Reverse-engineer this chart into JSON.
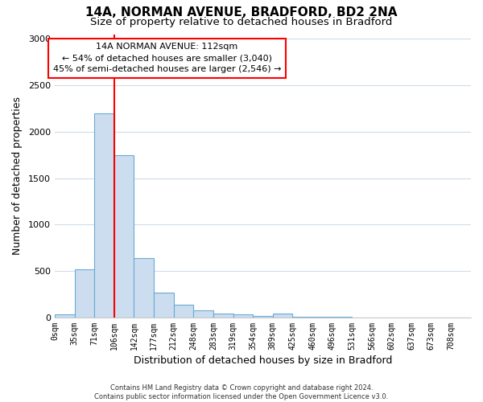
{
  "title1": "14A, NORMAN AVENUE, BRADFORD, BD2 2NA",
  "title2": "Size of property relative to detached houses in Bradford",
  "xlabel": "Distribution of detached houses by size in Bradford",
  "ylabel": "Number of detached properties",
  "bar_labels": [
    "0sqm",
    "35sqm",
    "71sqm",
    "106sqm",
    "142sqm",
    "177sqm",
    "212sqm",
    "248sqm",
    "283sqm",
    "319sqm",
    "354sqm",
    "389sqm",
    "425sqm",
    "460sqm",
    "496sqm",
    "531sqm",
    "566sqm",
    "602sqm",
    "637sqm",
    "673sqm",
    "708sqm"
  ],
  "bar_values": [
    30,
    520,
    2200,
    1750,
    640,
    265,
    140,
    80,
    45,
    35,
    20,
    40,
    10,
    5,
    5,
    0,
    0,
    0,
    0,
    0,
    0
  ],
  "bar_color": "#ccddef",
  "bar_edge_color": "#6aaad4",
  "vline_color": "red",
  "annotation_text": "14A NORMAN AVENUE: 112sqm\n← 54% of detached houses are smaller (3,040)\n45% of semi-detached houses are larger (2,546) →",
  "ylim": [
    0,
    3050
  ],
  "yticks": [
    0,
    500,
    1000,
    1500,
    2000,
    2500,
    3000
  ],
  "footnote": "Contains HM Land Registry data © Crown copyright and database right 2024.\nContains public sector information licensed under the Open Government Licence v3.0.",
  "bg_color": "#ffffff",
  "grid_color": "#d0dce8",
  "title1_fontsize": 11,
  "title2_fontsize": 9.5
}
